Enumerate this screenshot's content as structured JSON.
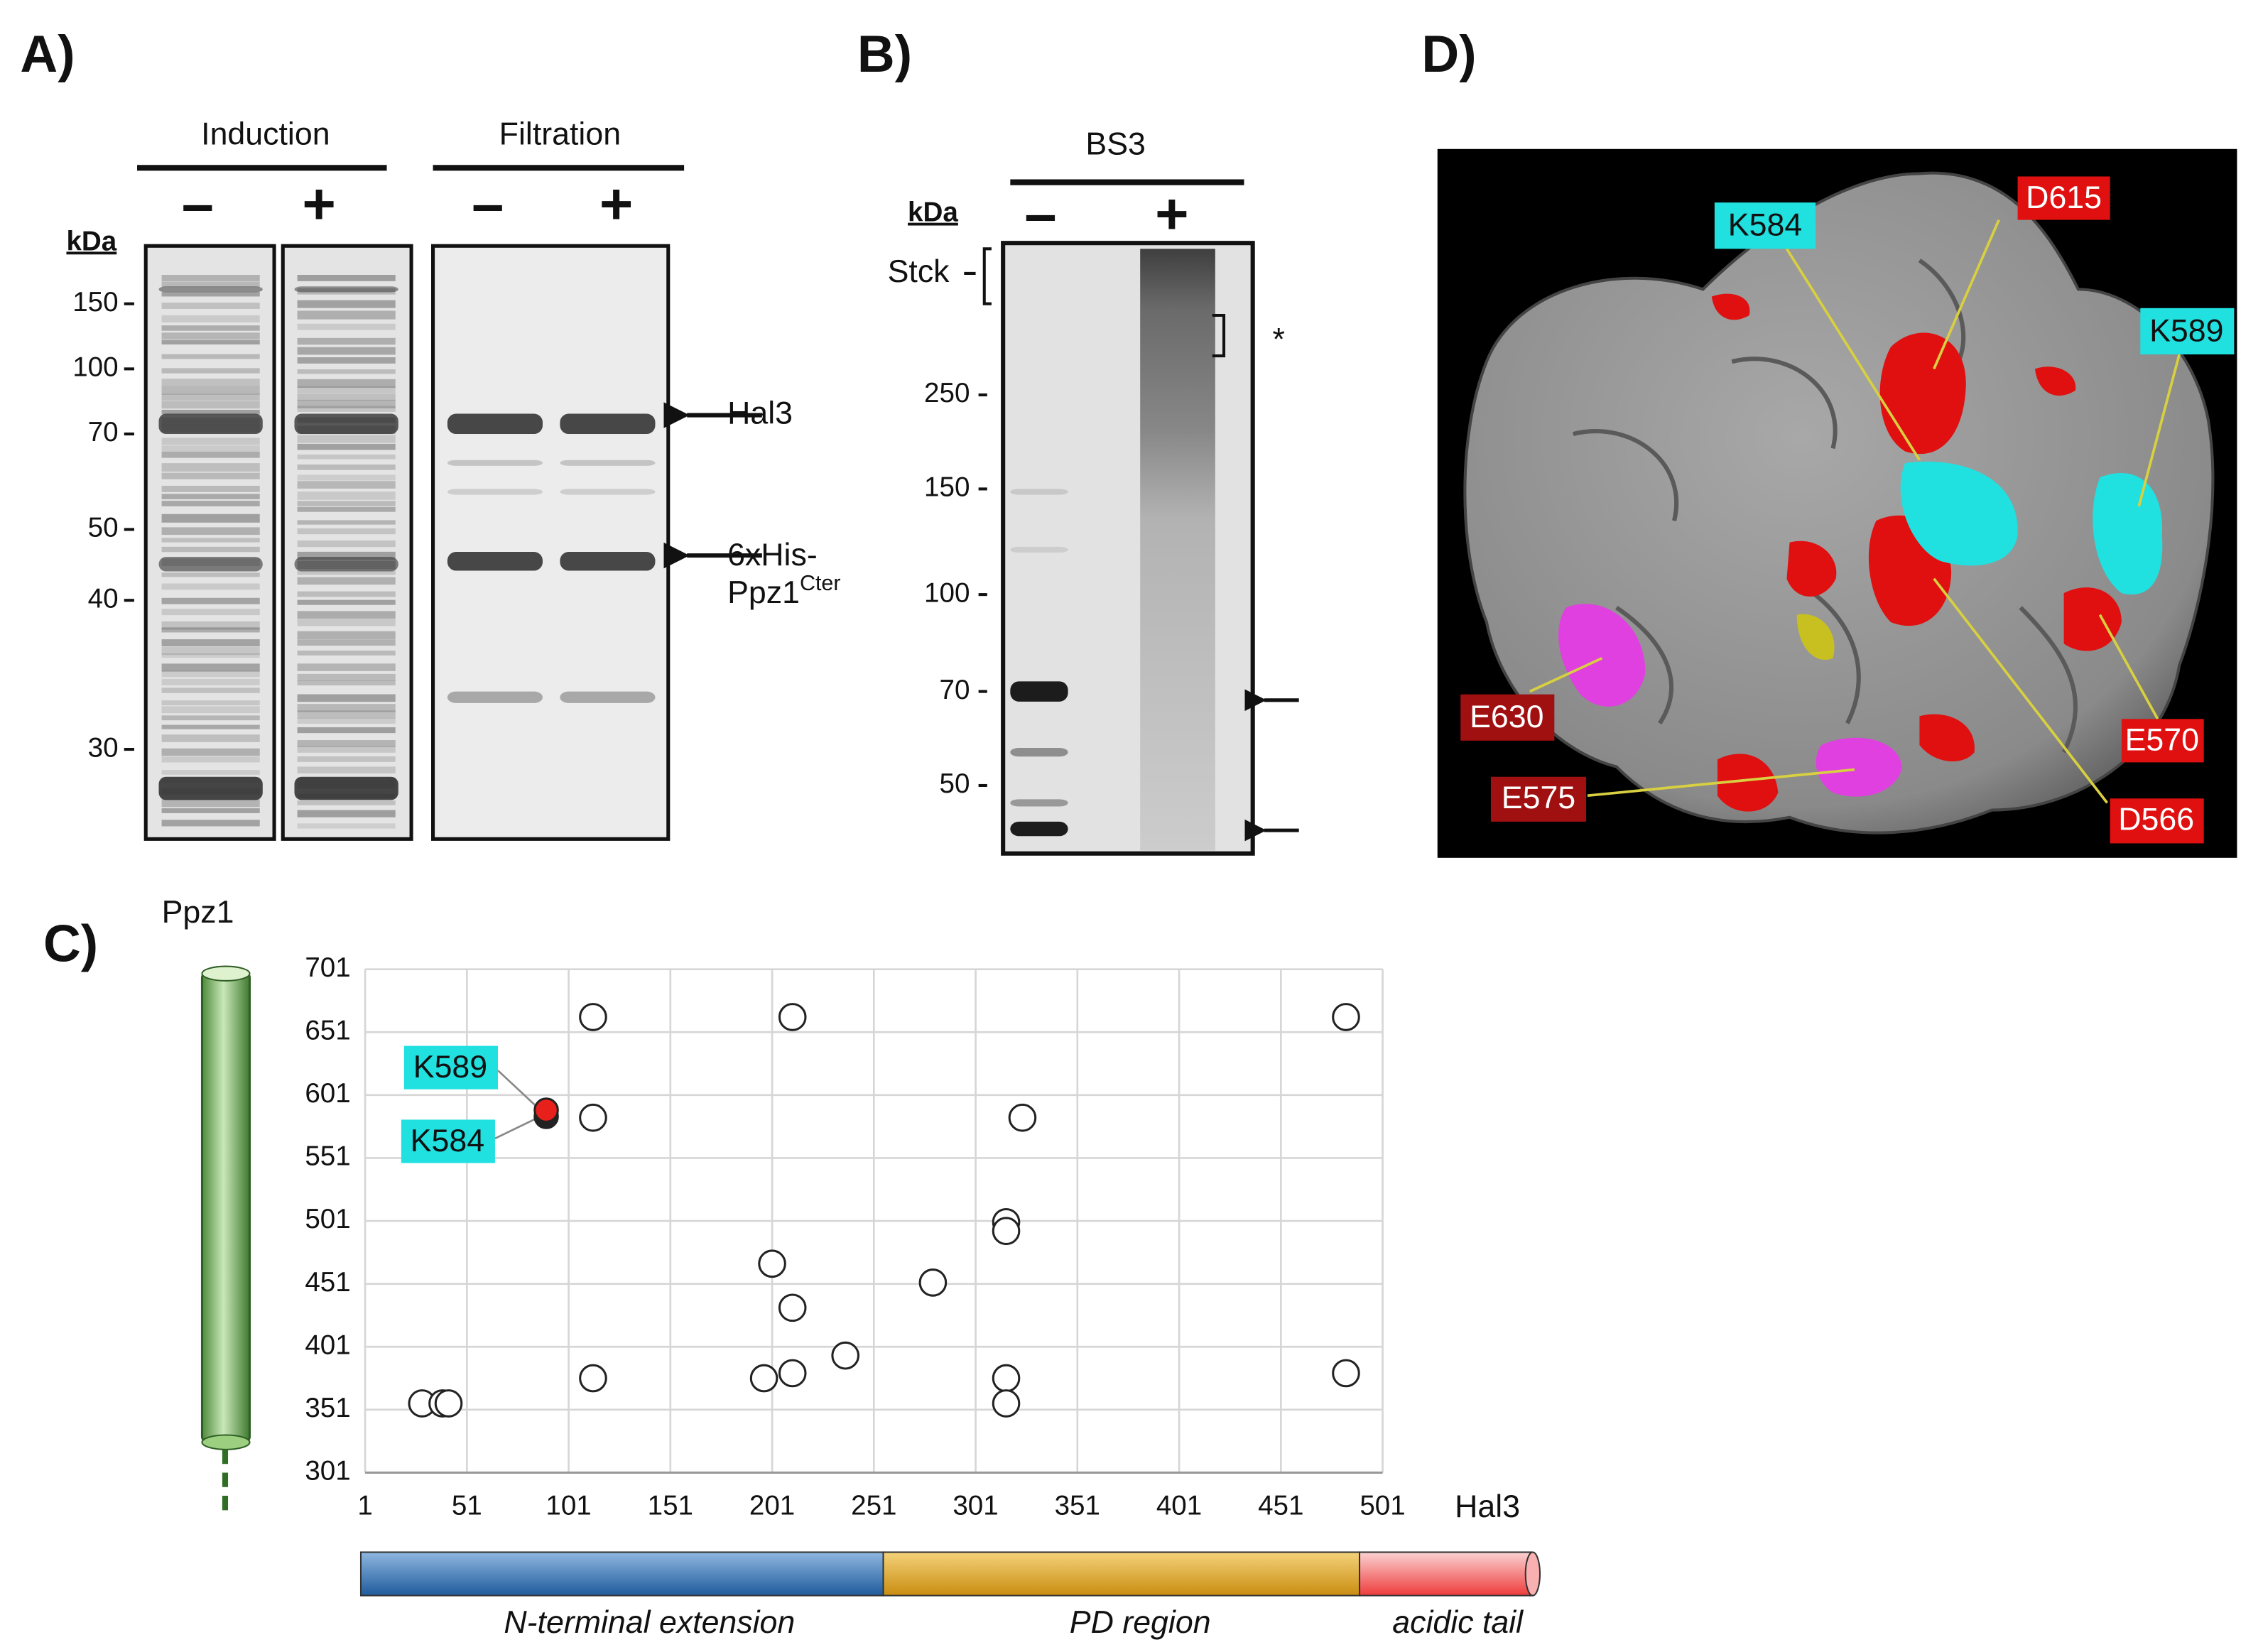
{
  "panel_a": {
    "label": "A)",
    "kda_label": "kDa",
    "kda_markers": [
      "150",
      "100",
      "70",
      "50",
      "40",
      "30"
    ],
    "groups": [
      {
        "title": "Induction",
        "lanes": [
          "–",
          "+"
        ]
      },
      {
        "title": "Filtration",
        "lanes": [
          "–",
          "+"
        ]
      }
    ],
    "bands": {
      "hal3": "Hal3",
      "ppz1": "6xHis-",
      "ppz1_b": "Ppz1",
      "ppz1_sup": "Cter"
    }
  },
  "panel_b": {
    "label": "B)",
    "title": "BS3",
    "kda_label": "kDa",
    "lanes": [
      "–",
      "+"
    ],
    "stack": "Stck",
    "asterisk": "*",
    "kda_markers": [
      "250",
      "150",
      "100",
      "70",
      "50"
    ]
  },
  "chart_data": {
    "type": "scatter",
    "label": "C)",
    "y_title": "Ppz1",
    "x_title": "Hal3",
    "xlim": [
      1,
      501
    ],
    "ylim": [
      301,
      701
    ],
    "xticks": [
      1,
      51,
      101,
      151,
      201,
      251,
      301,
      351,
      401,
      451,
      501
    ],
    "yticks": [
      301,
      351,
      401,
      451,
      501,
      551,
      601,
      651,
      701
    ],
    "grid": true,
    "color": "#ffffff",
    "x": [
      29,
      39,
      42,
      113,
      113,
      113,
      211,
      201,
      211,
      197,
      211,
      237,
      280,
      316,
      316,
      324,
      316,
      316,
      483,
      483
    ],
    "values": [
      356,
      356,
      356,
      663,
      583,
      376,
      663,
      467,
      432,
      376,
      380,
      394,
      452,
      500,
      493,
      583,
      376,
      356,
      663,
      380
    ],
    "highlight": {
      "labels": [
        "K589",
        "K584"
      ],
      "x": [
        90,
        90
      ],
      "values": [
        589,
        584
      ],
      "colors": [
        "#e8201c",
        "#222222"
      ]
    },
    "domains": [
      "N-terminal extension",
      "PD region",
      "acidic tail"
    ]
  },
  "panel_d": {
    "label": "D)",
    "residues": [
      "K584",
      "D615",
      "K589",
      "E630",
      "E570",
      "E575",
      "D566"
    ]
  }
}
